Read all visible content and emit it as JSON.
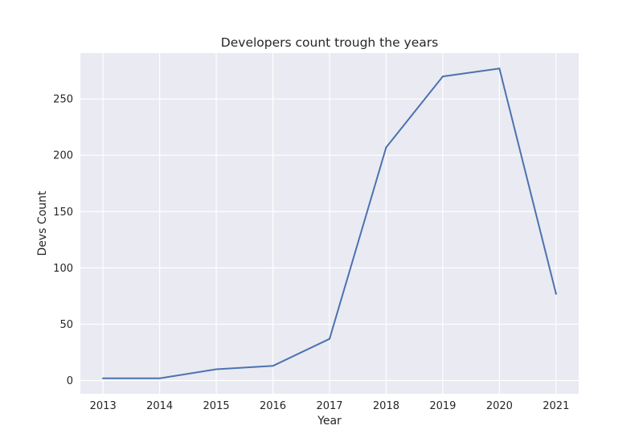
{
  "chart_data": {
    "type": "line",
    "title": "Developers count trough the years",
    "xlabel": "Year",
    "ylabel": "Devs Count",
    "x": [
      2013,
      2014,
      2015,
      2016,
      2017,
      2018,
      2019,
      2020,
      2021
    ],
    "series": [
      {
        "values": [
          2,
          2,
          10,
          13,
          37,
          207,
          270,
          277,
          77
        ]
      }
    ],
    "xticks": [
      "2013",
      "2014",
      "2015",
      "2016",
      "2017",
      "2018",
      "2019",
      "2020",
      "2021"
    ],
    "yticks": [
      0,
      50,
      100,
      150,
      200,
      250
    ],
    "xlim": [
      2012.6,
      2021.4
    ],
    "ylim": [
      -11.75,
      290.75
    ],
    "grid": true,
    "colors": {
      "plot_background": "#eaeaf2",
      "grid": "#ffffff",
      "line": "#4c72b0"
    }
  }
}
